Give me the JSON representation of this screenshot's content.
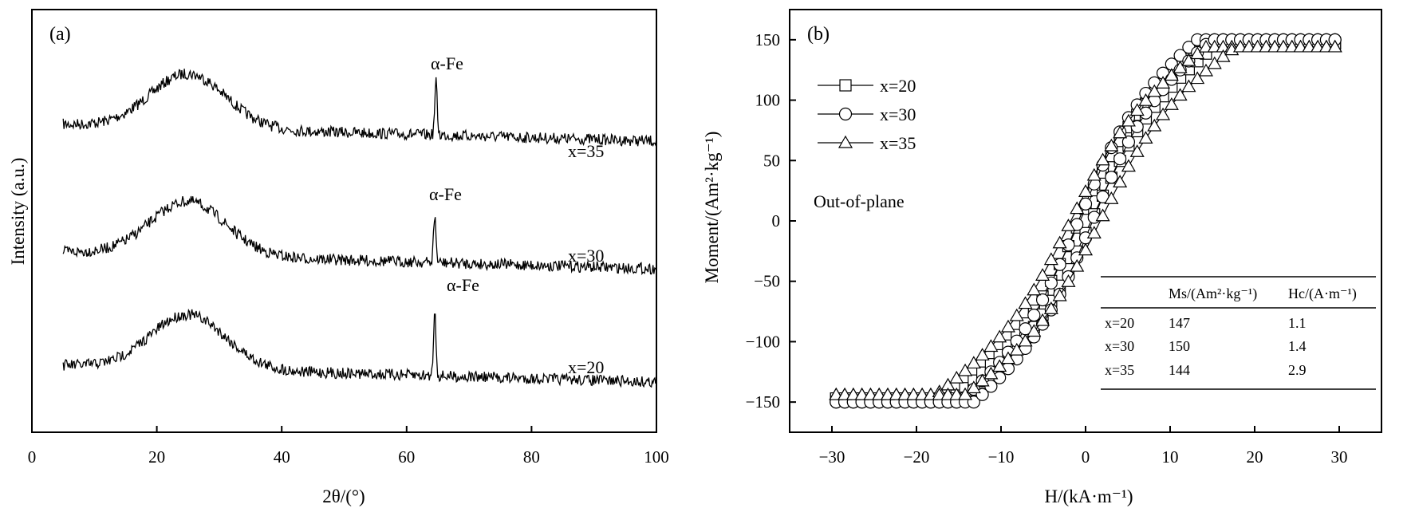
{
  "chart_data": [
    {
      "panel_label": "(a)",
      "type": "line",
      "xlabel": "2θ/(°)",
      "ylabel": "Intensity (a.u.)",
      "xlim": [
        0,
        100
      ],
      "xticks": [
        0,
        20,
        40,
        60,
        80,
        100
      ],
      "y_ticks_shown": false,
      "grid": false,
      "series": [
        {
          "name": "x=35",
          "curve_label": "x=35",
          "offset_level": 3,
          "hump_center_2theta": 25,
          "peak_2theta": 64.7,
          "peak_label": "α-Fe",
          "x_range": [
            5,
            100
          ]
        },
        {
          "name": "x=30",
          "curve_label": "x=30",
          "offset_level": 2,
          "hump_center_2theta": 25,
          "peak_2theta": 64.5,
          "peak_label": "α-Fe",
          "x_range": [
            5,
            100
          ]
        },
        {
          "name": "x=20",
          "curve_label": "x=20",
          "offset_level": 1,
          "hump_center_2theta": 25,
          "peak_2theta": 64.5,
          "peak_label": "α-Fe",
          "x_range": [
            5,
            100
          ]
        }
      ]
    },
    {
      "panel_label": "(b)",
      "type": "line",
      "xlabel": "H/(kA·m⁻¹)",
      "ylabel": "Moment/(Am²·kg⁻¹)",
      "xlim": [
        -35,
        35
      ],
      "ylim": [
        -175,
        175
      ],
      "xticks": [
        -30,
        -20,
        -10,
        0,
        10,
        20,
        30
      ],
      "yticks": [
        -150,
        -100,
        -50,
        0,
        50,
        100,
        150
      ],
      "grid": false,
      "legend_position": "upper-left",
      "annotation": "Out-of-plane",
      "series": [
        {
          "name": "x=20",
          "marker": "square",
          "Ms": 147,
          "Hc": 1.1,
          "saturation_field": 15,
          "x": [
            -30,
            -20,
            -15,
            -10,
            -5,
            0,
            5,
            10,
            15,
            20,
            30
          ],
          "y": [
            -147,
            -147,
            -145,
            -110,
            -60,
            -8,
            40,
            95,
            145,
            147,
            147
          ]
        },
        {
          "name": "x=30",
          "marker": "circle",
          "Ms": 150,
          "Hc": 1.4,
          "saturation_field": 14,
          "x": [
            -30,
            -20,
            -14,
            -10,
            -5,
            0,
            5,
            10,
            14,
            20,
            30
          ],
          "y": [
            -150,
            -150,
            -148,
            -118,
            -68,
            -12,
            45,
            105,
            148,
            150,
            150
          ]
        },
        {
          "name": "x=35",
          "marker": "triangle",
          "Ms": 144,
          "Hc": 2.9,
          "saturation_field": 16,
          "x": [
            -30,
            -20,
            -16,
            -10,
            -5,
            0,
            5,
            10,
            16,
            20,
            30
          ],
          "y": [
            -144,
            -144,
            -142,
            -100,
            -58,
            -12,
            38,
            85,
            142,
            144,
            144
          ]
        }
      ]
    }
  ],
  "panel_b_table": {
    "headers": [
      "",
      "Ms/(Am²·kg⁻¹)",
      "Hc/(A·m⁻¹)"
    ],
    "rows": [
      [
        "x=20",
        "147",
        "1.1"
      ],
      [
        "x=30",
        "150",
        "1.4"
      ],
      [
        "x=35",
        "144",
        "2.9"
      ]
    ]
  }
}
